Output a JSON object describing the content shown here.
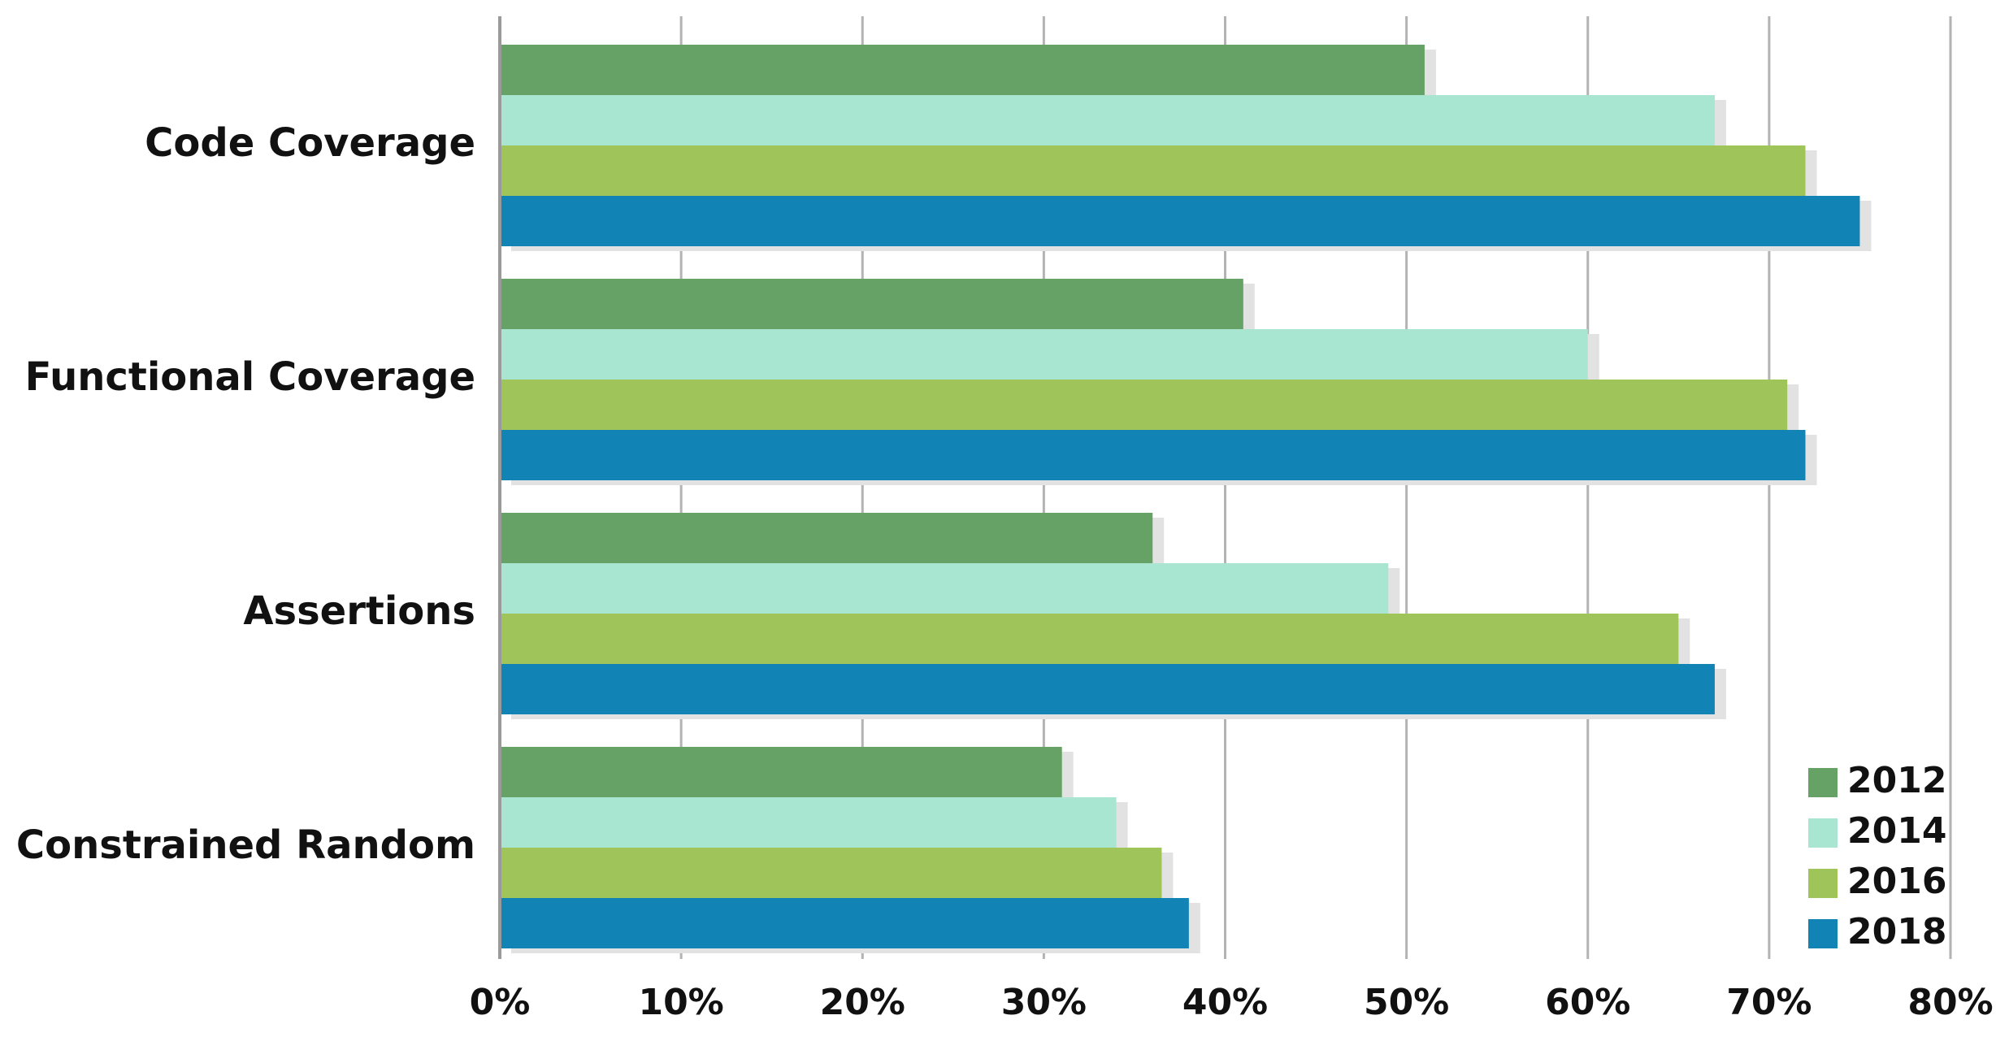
{
  "chart_data": {
    "type": "bar",
    "orientation": "horizontal",
    "categories": [
      "Code Coverage",
      "Functional Coverage",
      "Assertions",
      "Constrained Random"
    ],
    "series": [
      {
        "name": "2012",
        "color": "#66a266",
        "values": [
          51,
          41,
          36,
          31
        ]
      },
      {
        "name": "2014",
        "color": "#a8e6d2",
        "values": [
          67,
          60,
          49,
          34
        ]
      },
      {
        "name": "2016",
        "color": "#9ec45a",
        "values": [
          72,
          71,
          65,
          36.5
        ]
      },
      {
        "name": "2018",
        "color": "#1184b5",
        "values": [
          75,
          72,
          67,
          38
        ]
      }
    ],
    "xlim": [
      0,
      80
    ],
    "xticks": [
      0,
      10,
      20,
      30,
      40,
      50,
      60,
      70,
      80
    ],
    "xtick_labels": [
      "0%",
      "10%",
      "20%",
      "30%",
      "40%",
      "50%",
      "60%",
      "70%",
      "80%"
    ],
    "grid": true,
    "legend": "bottom-right",
    "title": "",
    "xlabel": "",
    "ylabel": ""
  }
}
